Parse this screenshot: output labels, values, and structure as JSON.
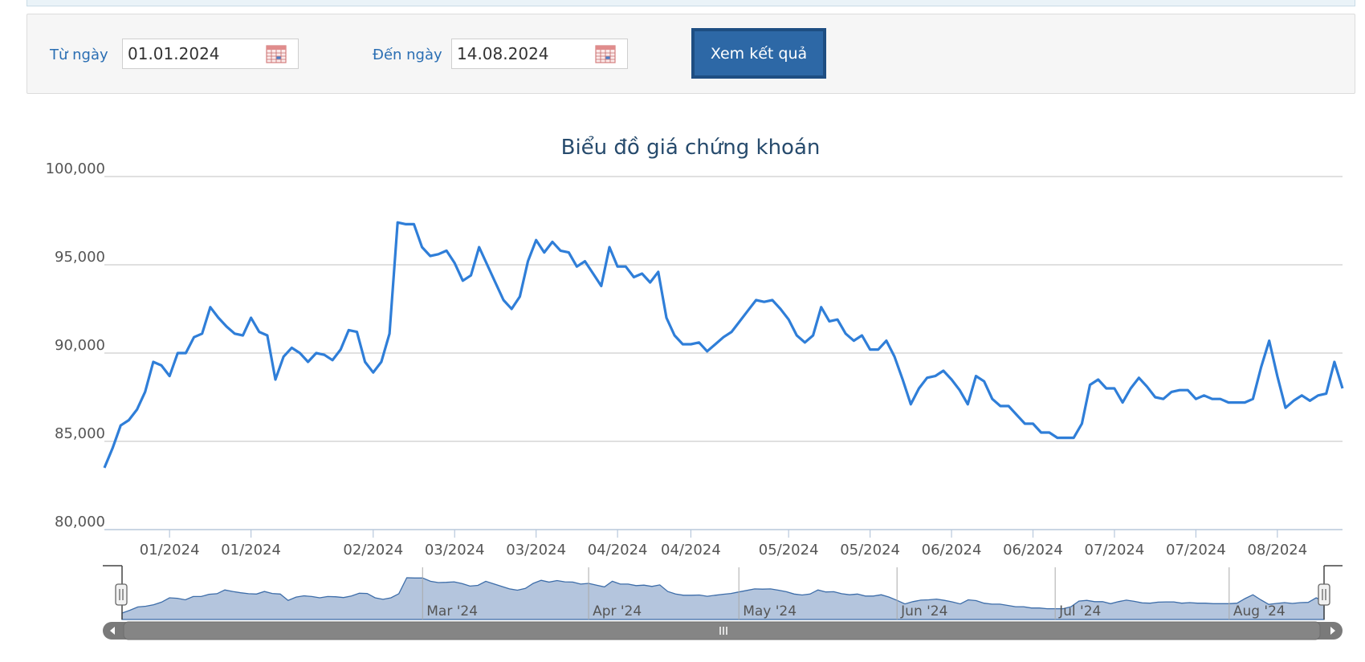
{
  "filter": {
    "from_label": "Từ ngày",
    "from_value": "01.01.2024",
    "to_label": "Đến ngày",
    "to_value": "14.08.2024",
    "submit_label": "Xem kết quả"
  },
  "colors": {
    "accent": "#2d68a6",
    "series_line": "#2f7ed8",
    "navigator_fill": "#b4c5dd",
    "navigator_line": "#3d6da9"
  },
  "chart_data": {
    "type": "line",
    "title": "Biểu đồ giá chứng khoán",
    "ylim": [
      80000,
      100000
    ],
    "y_ticks": [
      "80,000",
      "85,000",
      "90,000",
      "95,000",
      "100,000"
    ],
    "x_tick_labels": [
      "01/2024",
      "01/2024",
      "02/2024",
      "03/2024",
      "03/2024",
      "04/2024",
      "04/2024",
      "05/2024",
      "05/2024",
      "06/2024",
      "06/2024",
      "07/2024",
      "07/2024",
      "08/2024"
    ],
    "x_tick_positions": [
      8,
      18,
      33,
      43,
      53,
      63,
      72,
      84,
      94,
      104,
      114,
      124,
      134,
      144
    ],
    "grid": true,
    "legend": "none",
    "series": [
      {
        "values": [
          83500,
          84600,
          85900,
          86200,
          86800,
          87800,
          89500,
          89300,
          88700,
          90000,
          90000,
          90900,
          91100,
          92600,
          92000,
          91500,
          91100,
          91000,
          92000,
          91200,
          91000,
          88500,
          89800,
          90300,
          90000,
          89500,
          90000,
          89900,
          89600,
          90200,
          91300,
          91200,
          89500,
          88900,
          89500,
          91100,
          97400,
          97300,
          97300,
          96000,
          95500,
          95600,
          95800,
          95100,
          94100,
          94400,
          96000,
          95000,
          94000,
          93000,
          92500,
          93200,
          95200,
          96400,
          95700,
          96300,
          95800,
          95700,
          94900,
          95200,
          94500,
          93800,
          96000,
          94900,
          94900,
          94300,
          94500,
          94000,
          94600,
          92000,
          91000,
          90500,
          90500,
          90600,
          90100,
          90500,
          90900,
          91200,
          91800,
          92400,
          93000,
          92900,
          93000,
          92500,
          91900,
          91000,
          90600,
          91000,
          92600,
          91800,
          91900,
          91100,
          90700,
          91000,
          90200,
          90200,
          90700,
          89800,
          88500,
          87100,
          88000,
          88600,
          88700,
          89000,
          88500,
          87900,
          87100,
          88700,
          88400,
          87400,
          87000,
          87000,
          86500,
          86000,
          86000,
          85500,
          85500,
          85200,
          85200,
          85200,
          86000,
          88200,
          88500,
          88000,
          88000,
          87200,
          88000,
          88600,
          88100,
          87500,
          87400,
          87800,
          87900,
          87900,
          87400,
          87600,
          87400,
          87400,
          87200,
          87200,
          87200,
          87400,
          89200,
          90700,
          88700,
          86900,
          87300,
          87600,
          87300,
          87600,
          87700,
          89500,
          88000
        ]
      }
    ],
    "navigator": {
      "month_labels": [
        "Mar '24",
        "Apr '24",
        "May '24",
        "Jun '24",
        "Jul '24",
        "Aug '24"
      ],
      "month_positions": [
        38,
        59,
        78,
        98,
        118,
        140
      ]
    }
  }
}
